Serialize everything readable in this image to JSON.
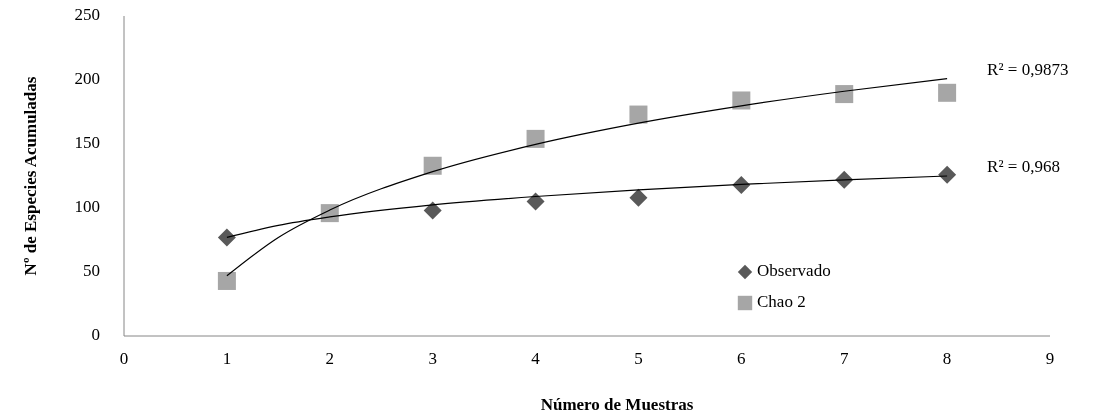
{
  "chart_data": {
    "type": "scatter",
    "xlabel": "Número de Muestras",
    "ylabel": "Nº de Especies Acumuladas",
    "xlim": [
      0,
      9
    ],
    "xticks": [
      0,
      1,
      2,
      3,
      4,
      5,
      6,
      7,
      8,
      9
    ],
    "ylim": [
      0,
      250
    ],
    "yticks": [
      0,
      50,
      100,
      150,
      200,
      250
    ],
    "grid": false,
    "legend": "bottom right",
    "series": [
      {
        "name": "Observado",
        "color": "#595959",
        "marker": "diamond",
        "x": [
          1,
          3,
          4,
          5,
          6,
          7,
          8
        ],
        "values": [
          77,
          98,
          105,
          108,
          118,
          122,
          126
        ]
      },
      {
        "name": "Chao 2",
        "color": "#a6a6a6",
        "marker": "square",
        "x": [
          1,
          2,
          3,
          4,
          5,
          6,
          7,
          8
        ],
        "values": [
          43,
          96,
          133,
          154,
          173,
          184,
          189,
          190
        ]
      },
      {
        "type": "line",
        "color": "#000000",
        "marker": "none",
        "x": [
          1,
          1.5,
          2,
          3,
          4,
          5,
          6,
          7,
          8
        ],
        "values": [
          77,
          86.4,
          93,
          102.4,
          109,
          114.2,
          118.4,
          122,
          125
        ]
      },
      {
        "type": "line",
        "color": "#000000",
        "marker": "none",
        "x": [
          1,
          1.5,
          2,
          3,
          4,
          5,
          6,
          7,
          8
        ],
        "values": [
          47,
          77,
          98.4,
          128.4,
          149.7,
          166.3,
          179.8,
          191.2,
          201.1
        ]
      }
    ],
    "annotations": [
      {
        "text": "R² = 0,9873",
        "x": 8,
        "y": 201
      },
      {
        "text": "R² = 0,968",
        "x": 8,
        "y": 125
      }
    ]
  }
}
